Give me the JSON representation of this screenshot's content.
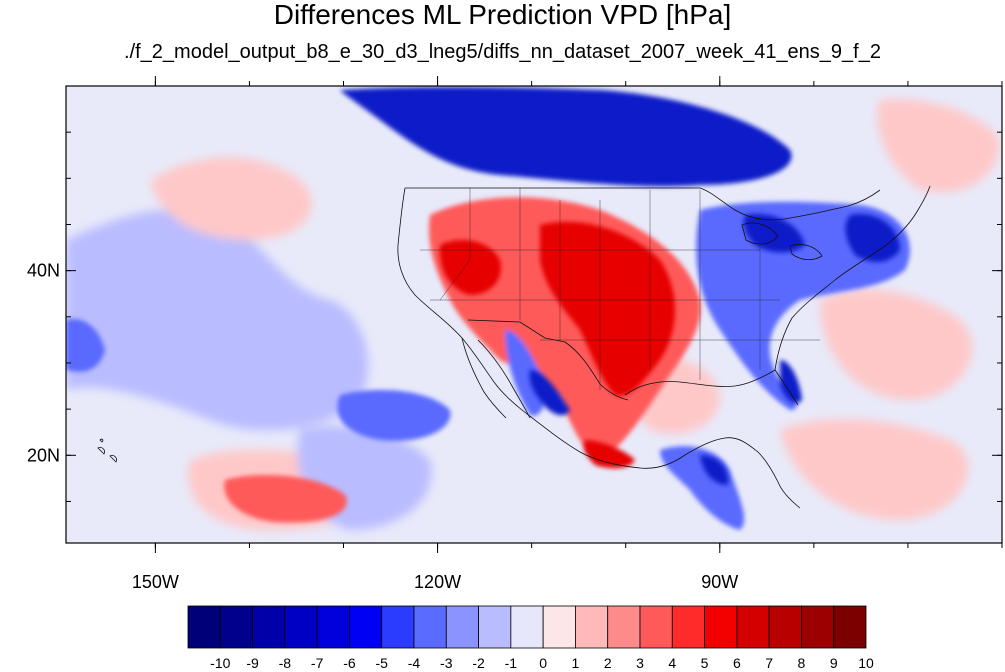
{
  "title": "Differences ML Prediction VPD [hPa]",
  "subtitle": "./f_2_model_output_b8_e_30_d3_lneg5/diffs_nn_dataset_2007_week_41_ens_9_f_2",
  "axes": {
    "lon_ticks": [
      {
        "label": "150W",
        "lon": -150
      },
      {
        "label": "120W",
        "lon": -120
      },
      {
        "label": "90W",
        "lon": -90
      }
    ],
    "lat_ticks": [
      {
        "label": "40N",
        "lat": 40
      },
      {
        "label": "20N",
        "lat": 20
      }
    ],
    "lon_range": [
      -159.5,
      -60
    ],
    "lat_range": [
      10.5,
      60
    ]
  },
  "colorbar": {
    "labels": [
      "-10",
      "-9",
      "-8",
      "-7",
      "-6",
      "-5",
      "-4",
      "-3",
      "-2",
      "-1",
      "0",
      "1",
      "2",
      "3",
      "4",
      "5",
      "6",
      "7",
      "8",
      "9",
      "10"
    ],
    "colors": [
      "#000078",
      "#00008c",
      "#0000a8",
      "#0000c4",
      "#0000dc",
      "#0000f5",
      "#2b3cff",
      "#5a6bff",
      "#8a93ff",
      "#b9bcff",
      "#e6e8fa",
      "#fde6e6",
      "#ffb9b9",
      "#ff8a8a",
      "#ff5a5a",
      "#ff2b2b",
      "#f20000",
      "#d40000",
      "#b80000",
      "#9c0000",
      "#7c0000"
    ]
  },
  "colors": {
    "ocean_base": "#e8eafa",
    "strong_blue": "#0a1ec8",
    "mid_blue": "#5a6bff",
    "light_blue": "#b9bcff",
    "strong_red": "#e60000",
    "mid_red": "#ff5a5a",
    "light_red": "#ffc8c8"
  }
}
